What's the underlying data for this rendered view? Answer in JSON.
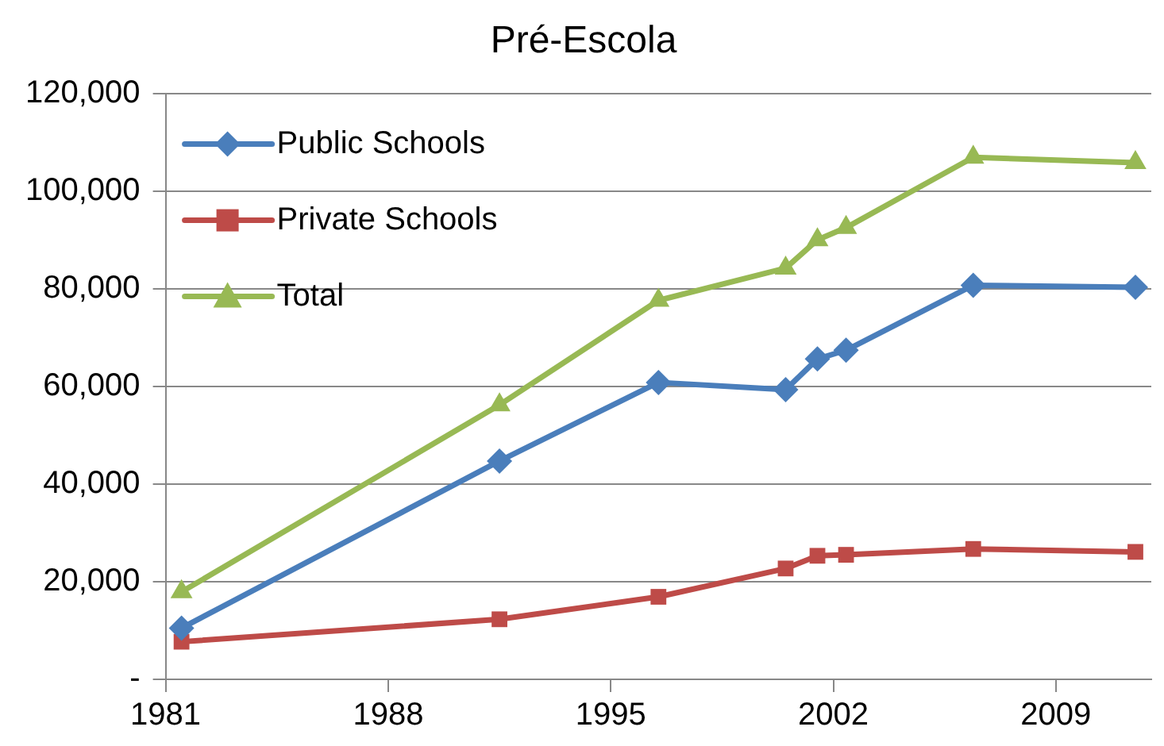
{
  "chart_data": {
    "type": "line",
    "title": "Pré-Escola",
    "x": [
      1981.5,
      1991.5,
      1996.5,
      2000.5,
      2001.5,
      2002.4,
      2006.4,
      2011.5
    ],
    "series": [
      {
        "name": "Public Schools",
        "color": "#4a7ebb",
        "marker": "diamond",
        "values": [
          10500,
          44700,
          60800,
          59300,
          65600,
          67400,
          80700,
          80300
        ]
      },
      {
        "name": "Private Schools",
        "color": "#be4b48",
        "marker": "square",
        "values": [
          7700,
          12300,
          16900,
          22700,
          25300,
          25500,
          26700,
          26100
        ]
      },
      {
        "name": "Total",
        "color": "#98b954",
        "marker": "triangle",
        "values": [
          17900,
          56200,
          77600,
          84200,
          90000,
          92500,
          106900,
          105800
        ]
      }
    ],
    "xlim": [
      1981,
      2012
    ],
    "xticks": [
      1981,
      1988,
      1995,
      2002,
      2009
    ],
    "ylim": [
      0,
      120000
    ],
    "yticks": [
      {
        "value": 0,
        "label": "-"
      },
      {
        "value": 20000,
        "label": "20,000"
      },
      {
        "value": 40000,
        "label": "40,000"
      },
      {
        "value": 60000,
        "label": "60,000"
      },
      {
        "value": 80000,
        "label": "80,000"
      },
      {
        "value": 100000,
        "label": "100,000"
      },
      {
        "value": 120000,
        "label": "120,000"
      }
    ],
    "grid": "y",
    "legend": "top left"
  }
}
